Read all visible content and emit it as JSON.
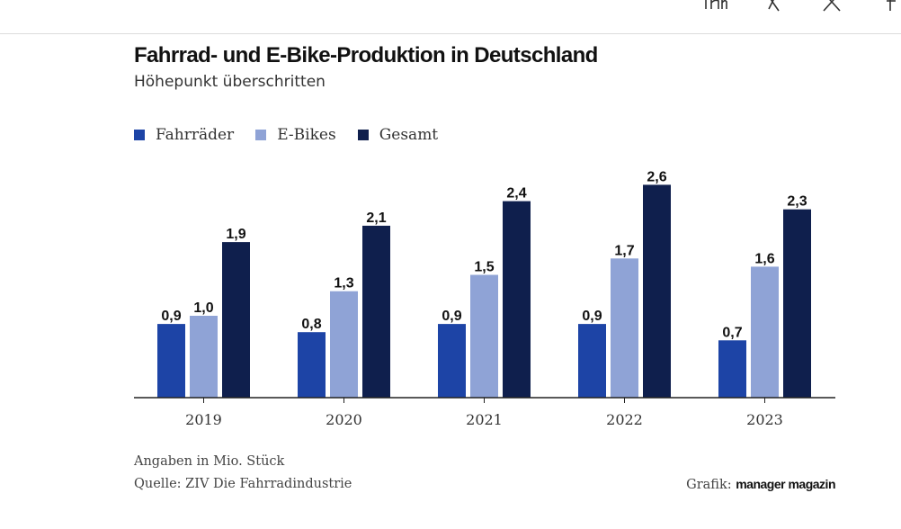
{
  "share": {
    "icons": [
      "linkedin-icon",
      "xing-icon",
      "x-icon",
      "facebook-icon"
    ]
  },
  "chart_data": {
    "type": "bar",
    "title": "Fahrrad- und E-Bike-Produktion in Deutschland",
    "subtitle": "Höhepunkt überschritten",
    "categories": [
      "2019",
      "2020",
      "2021",
      "2022",
      "2023"
    ],
    "series": [
      {
        "name": "Fahrräder",
        "color": "#1d44a6",
        "values": [
          0.9,
          0.8,
          0.9,
          0.9,
          0.7
        ],
        "labels": [
          "0,9",
          "0,8",
          "0,9",
          "0,9",
          "0,7"
        ]
      },
      {
        "name": "E-Bikes",
        "color": "#8fa3d6",
        "values": [
          1.0,
          1.3,
          1.5,
          1.7,
          1.6
        ],
        "labels": [
          "1,0",
          "1,3",
          "1,5",
          "1,7",
          "1,6"
        ]
      },
      {
        "name": "Gesamt",
        "color": "#0f1f4d",
        "values": [
          1.9,
          2.1,
          2.4,
          2.6,
          2.3
        ],
        "labels": [
          "1,9",
          "2,1",
          "2,4",
          "2,6",
          "2,3"
        ]
      }
    ],
    "xlabel": "",
    "ylabel": "",
    "ylim": [
      0,
      2.6
    ],
    "grid": false,
    "legend_position": "top-left"
  },
  "footer": {
    "unit_note": "Angaben in Mio. Stück",
    "source": "Quelle: ZIV Die Fahrradindustrie",
    "credit_label": "Grafik:",
    "credit_brand": "manager magazin"
  }
}
